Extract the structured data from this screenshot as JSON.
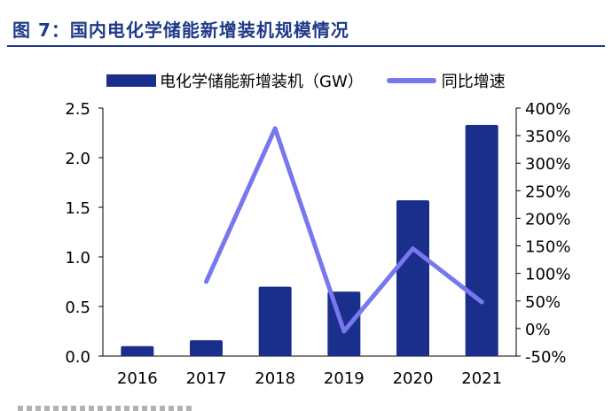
{
  "header": {
    "title": "图 7：国内电化学储能新增装机规模情况"
  },
  "colors": {
    "title": "#1f3a8a",
    "bar": "#1a2e8c",
    "line": "#7777ee"
  },
  "chart_data": {
    "type": "bar",
    "categories": [
      "2016",
      "2017",
      "2018",
      "2019",
      "2020",
      "2021"
    ],
    "series": [
      {
        "name": "电化学储能新增装机（GW）",
        "type": "bar",
        "axis": "left",
        "values": [
          0.1,
          0.16,
          0.7,
          0.65,
          1.57,
          2.33
        ]
      },
      {
        "name": "同比增速",
        "type": "line",
        "axis": "right",
        "values": [
          null,
          85,
          363,
          -5,
          145,
          48
        ]
      }
    ],
    "ylim_left": [
      0,
      2.5
    ],
    "yticks_left": [
      "0.0",
      "0.5",
      "1.0",
      "1.5",
      "2.0",
      "2.5"
    ],
    "ylim_right": [
      -50,
      400
    ],
    "yticks_right": [
      "-50%",
      "0%",
      "50%",
      "100%",
      "150%",
      "200%",
      "250%",
      "300%",
      "350%",
      "400%"
    ],
    "legend_position": "top",
    "grid": false
  }
}
